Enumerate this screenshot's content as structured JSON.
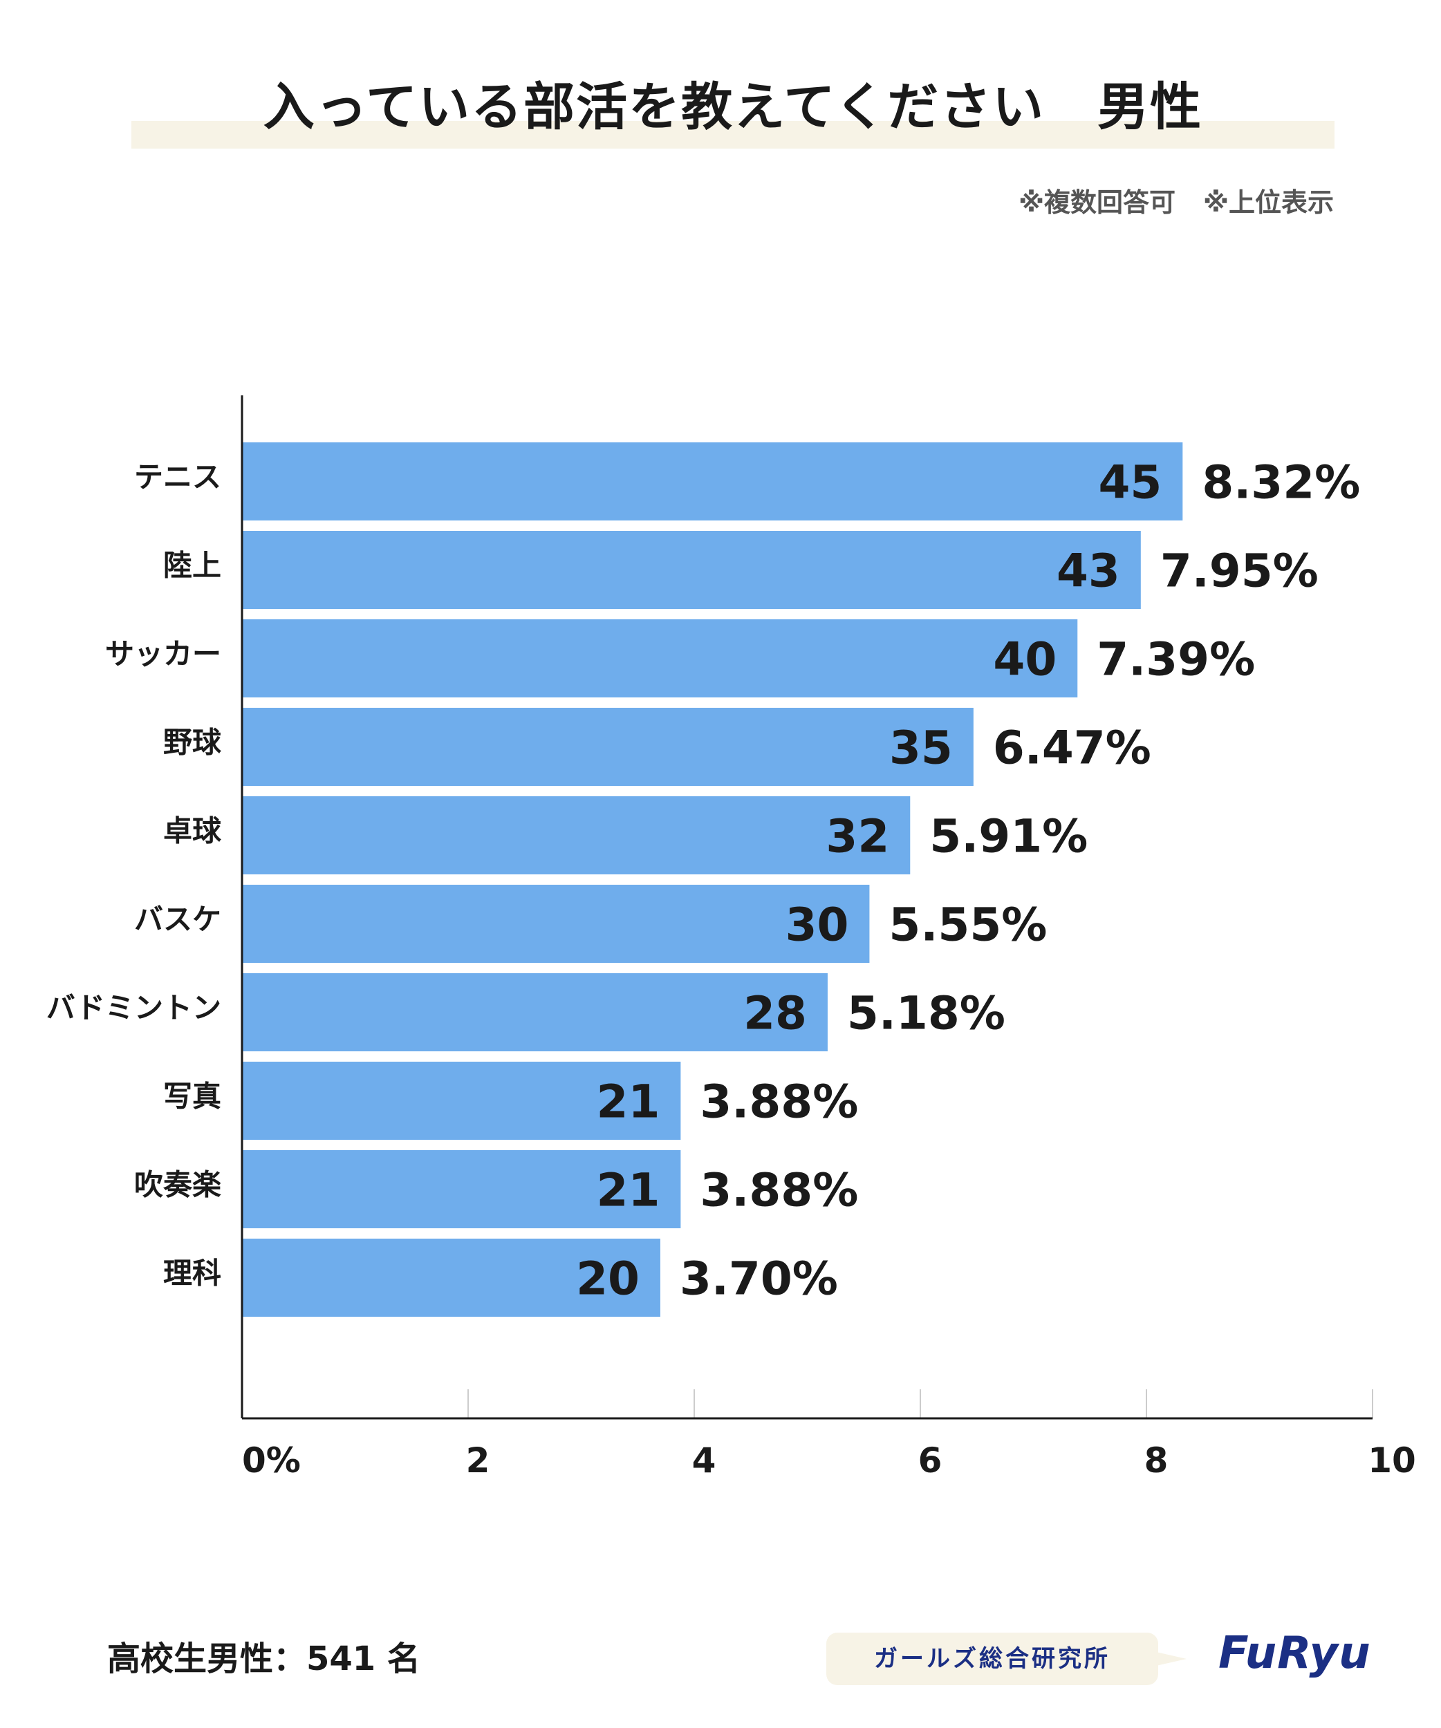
{
  "title": "入っている部活を教えてください　男性",
  "notes": [
    "※複数回答可",
    "※上位表示"
  ],
  "chart_data": {
    "type": "bar",
    "orientation": "horizontal",
    "categories": [
      "テニス",
      "陸上",
      "サッカー",
      "野球",
      "卓球",
      "バスケ",
      "バドミントン",
      "写真",
      "吹奏楽",
      "理科"
    ],
    "counts": [
      45,
      43,
      40,
      35,
      32,
      30,
      28,
      21,
      21,
      20
    ],
    "values": [
      8.32,
      7.95,
      7.39,
      6.47,
      5.91,
      5.55,
      5.18,
      3.88,
      3.88,
      3.7
    ],
    "value_labels": [
      "8.32%",
      "7.95%",
      "7.39%",
      "6.47%",
      "5.91%",
      "5.55%",
      "5.18%",
      "3.88%",
      "3.88%",
      "3.70%"
    ],
    "xlim": [
      0,
      10
    ],
    "xticks": [
      "0%",
      "2",
      "4",
      "6",
      "8",
      "10"
    ],
    "bar_color": "#6fadec"
  },
  "footer": {
    "sample": "高校生男性：541 名",
    "badge": "ガールズ総合研究所",
    "logo": "FuRyu"
  },
  "colors": {
    "brand": "#1b2f84",
    "title_band": "#f7f3e6"
  }
}
